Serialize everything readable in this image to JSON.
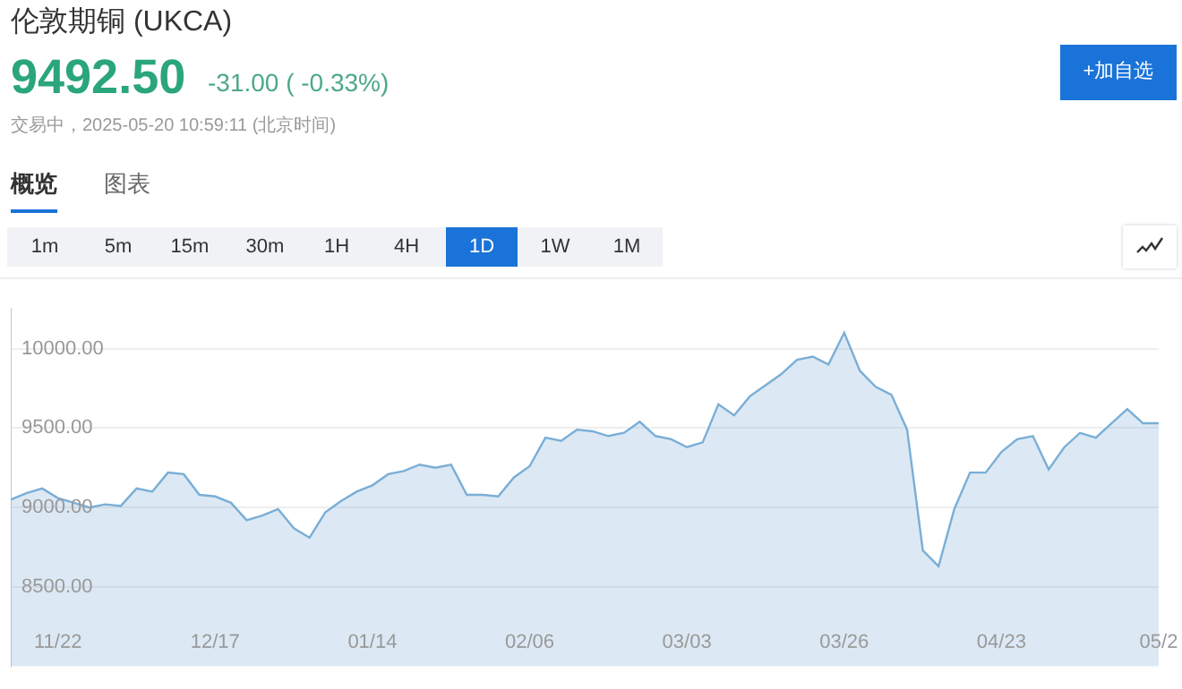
{
  "chart_data": {
    "type": "area",
    "title": "伦敦期铜 (UKCA)",
    "annotations": [
      "9492.50",
      "-31.00 ( -0.33%)",
      "交易中，2025-05-20 10:59:11 (北京时间)",
      "概览",
      "图表",
      "1m",
      "5m",
      "15m",
      "30m",
      "1H",
      "4H",
      "1D",
      "1W",
      "1M",
      "+加自选"
    ],
    "categories": [
      null,
      null,
      null,
      "11/22",
      null,
      null,
      null,
      null,
      null,
      null,
      null,
      null,
      null,
      "12/17",
      null,
      null,
      null,
      null,
      null,
      null,
      null,
      null,
      null,
      "01/14",
      null,
      null,
      null,
      null,
      null,
      null,
      null,
      null,
      null,
      "02/06",
      null,
      null,
      null,
      null,
      null,
      null,
      null,
      null,
      null,
      "03/03",
      null,
      null,
      null,
      null,
      null,
      null,
      null,
      null,
      null,
      "03/26",
      null,
      null,
      null,
      null,
      null,
      null,
      null,
      null,
      null,
      "04/23",
      null,
      null,
      null,
      null,
      null,
      null,
      null,
      null,
      null,
      "05/2"
    ],
    "series": [
      {
        "color": "#7aaed6",
        "values": [
          9050,
          9090,
          9120,
          9060,
          9030,
          9000,
          9020,
          9010,
          9120,
          9100,
          9220,
          9210,
          9080,
          9070,
          9030,
          8920,
          8950,
          8990,
          8870,
          8810,
          8970,
          9040,
          9100,
          9140,
          9210,
          9230,
          9270,
          9250,
          9270,
          9080,
          9080,
          9070,
          9190,
          9260,
          9440,
          9420,
          9490,
          9480,
          9450,
          9470,
          9540,
          9450,
          9430,
          9380,
          9410,
          9650,
          9580,
          9700,
          9770,
          9840,
          9930,
          9950,
          9900,
          10100,
          9860,
          9760,
          9710,
          9490,
          8730,
          8630,
          8990,
          9220,
          9220,
          9350,
          9430,
          9450,
          9240,
          9380,
          9470,
          9440,
          9530,
          9620,
          9530,
          9530
        ]
      }
    ],
    "ylim": [
      8000,
      10250
    ],
    "yticks": [
      {
        "value": 8500,
        "label": "8500.00"
      },
      {
        "value": 9000,
        "label": "9000.00"
      },
      {
        "value": 9500,
        "label": "9500.00"
      },
      {
        "value": 10000,
        "label": "10000.00"
      }
    ],
    "grid": "y",
    "legend": false
  }
}
